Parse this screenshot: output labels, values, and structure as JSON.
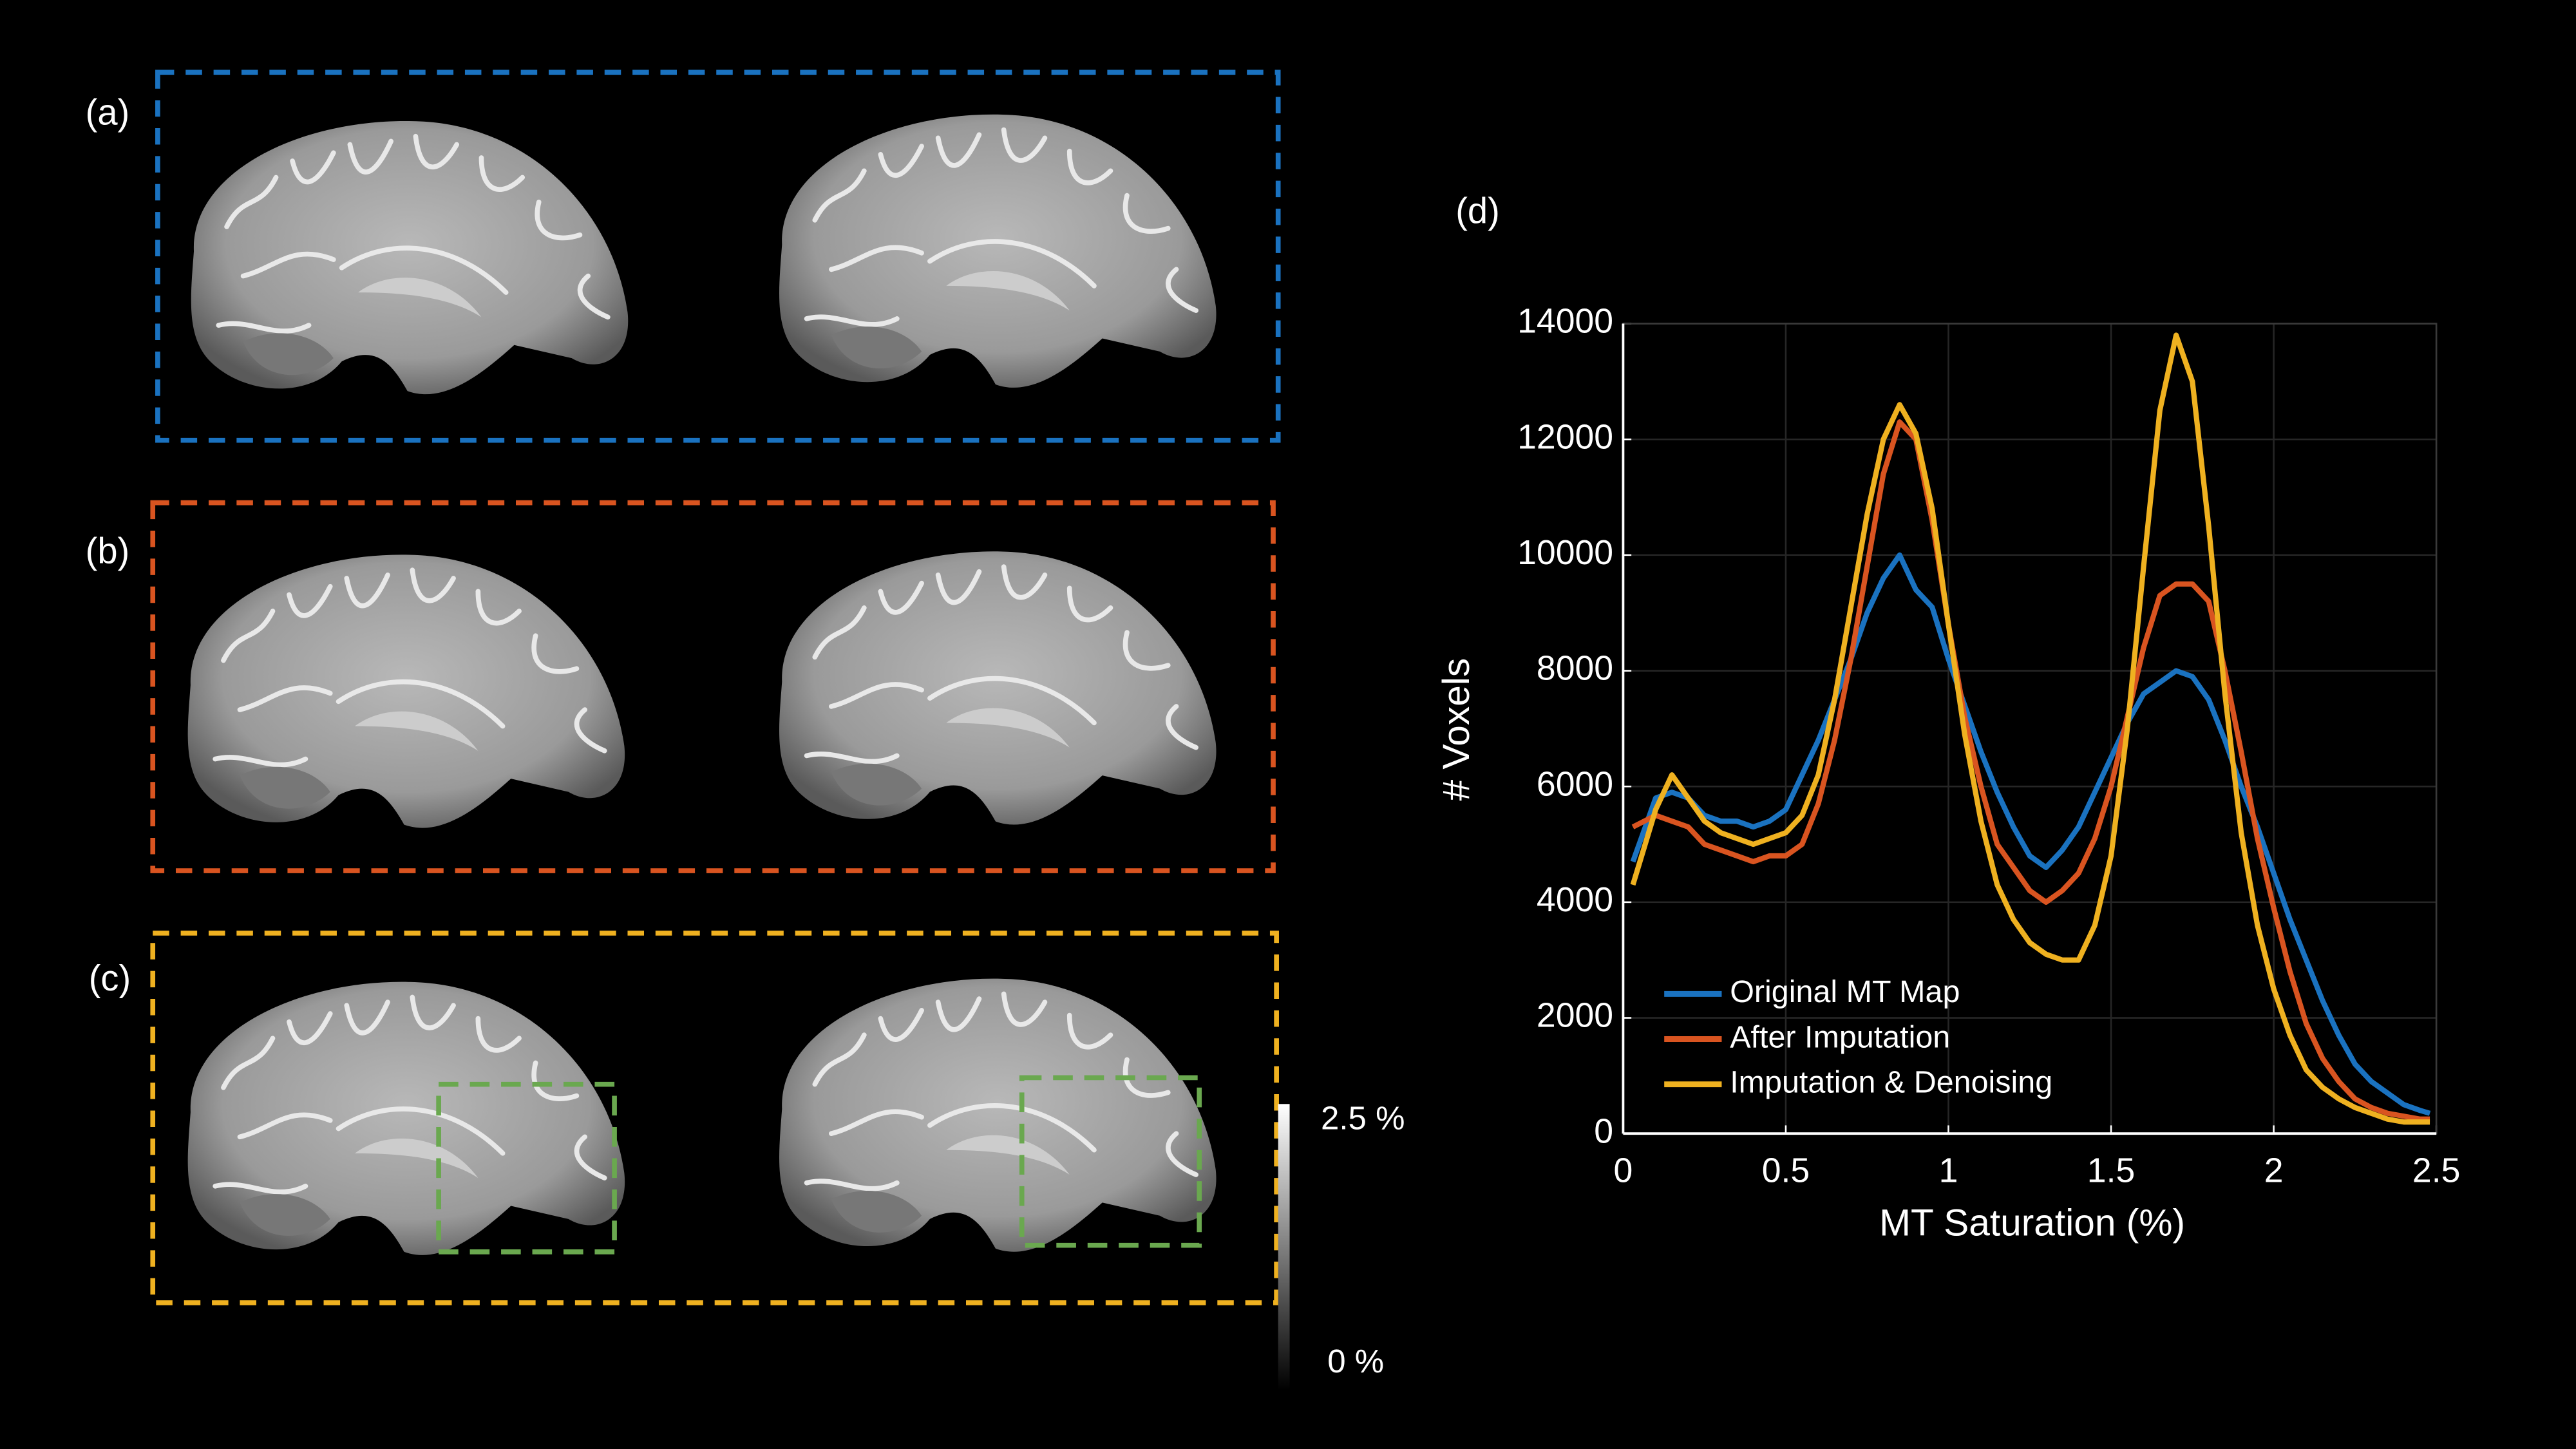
{
  "panel_labels": [
    "(a)",
    "(b)",
    "(c)",
    "(d)"
  ],
  "colorbar": {
    "max_label": "2.5 %",
    "min_label": "0 %"
  },
  "chart_data": {
    "type": "line",
    "x_label": "MT Saturation (%)",
    "y_label": "# Voxels",
    "x": [
      0.03,
      0.1,
      0.15,
      0.2,
      0.25,
      0.3,
      0.35,
      0.4,
      0.45,
      0.5,
      0.55,
      0.6,
      0.65,
      0.7,
      0.75,
      0.8,
      0.85,
      0.9,
      0.95,
      1.0,
      1.05,
      1.1,
      1.15,
      1.2,
      1.25,
      1.3,
      1.35,
      1.4,
      1.45,
      1.5,
      1.55,
      1.6,
      1.65,
      1.7,
      1.75,
      1.8,
      1.85,
      1.9,
      1.95,
      2.0,
      2.05,
      2.1,
      2.15,
      2.2,
      2.25,
      2.3,
      2.35,
      2.4,
      2.45,
      2.48
    ],
    "series": [
      {
        "name": "Original MT Map",
        "color": "#1a72c0",
        "values": [
          4700,
          5800,
          5900,
          5800,
          5500,
          5400,
          5400,
          5300,
          5400,
          5600,
          6200,
          6800,
          7500,
          8200,
          9000,
          9600,
          10000,
          9400,
          9100,
          8200,
          7400,
          6600,
          5900,
          5300,
          4800,
          4600,
          4900,
          5300,
          5900,
          6500,
          7100,
          7600,
          7800,
          8000,
          7900,
          7500,
          6800,
          6000,
          5300,
          4500,
          3700,
          3000,
          2300,
          1700,
          1200,
          900,
          700,
          500,
          400,
          350
        ]
      },
      {
        "name": "After Imputation",
        "color": "#d95420",
        "values": [
          5300,
          5500,
          5400,
          5300,
          5000,
          4900,
          4800,
          4700,
          4800,
          4800,
          5000,
          5700,
          6800,
          8200,
          9800,
          11400,
          12300,
          12000,
          10600,
          8800,
          7200,
          6000,
          5000,
          4600,
          4200,
          4000,
          4200,
          4500,
          5100,
          6000,
          7200,
          8400,
          9300,
          9500,
          9500,
          9200,
          8000,
          6600,
          5100,
          3900,
          2800,
          1900,
          1300,
          900,
          600,
          450,
          350,
          300,
          250,
          250
        ]
      },
      {
        "name": "Imputation & Denoising",
        "color": "#efb120",
        "values": [
          4300,
          5600,
          6200,
          5800,
          5400,
          5200,
          5100,
          5000,
          5100,
          5200,
          5500,
          6200,
          7500,
          9100,
          10700,
          12000,
          12600,
          12100,
          10800,
          8800,
          6900,
          5400,
          4300,
          3700,
          3300,
          3100,
          3000,
          3000,
          3600,
          4800,
          7000,
          9800,
          12500,
          13800,
          13000,
          10500,
          7600,
          5200,
          3600,
          2500,
          1700,
          1100,
          800,
          600,
          450,
          350,
          250,
          200,
          200,
          200
        ]
      }
    ],
    "xlim": [
      0,
      2.5
    ],
    "xticks": [
      0,
      0.5,
      1,
      1.5,
      2,
      2.5
    ],
    "ylim": [
      0,
      14000
    ],
    "yticks": [
      0,
      2000,
      4000,
      6000,
      8000,
      10000,
      12000,
      14000
    ],
    "grid": true,
    "legend": "lower left"
  }
}
